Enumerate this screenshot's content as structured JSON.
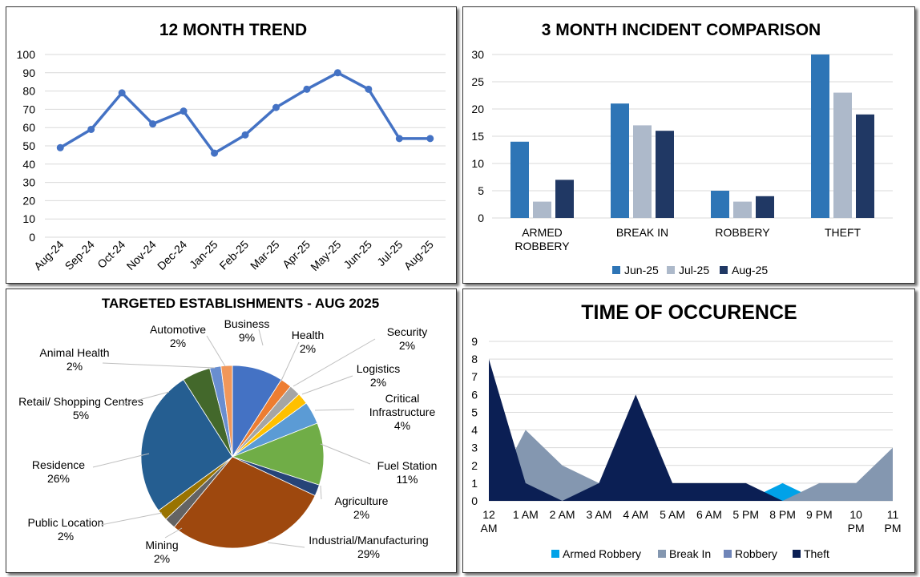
{
  "chart_data": [
    {
      "type": "line",
      "title": "12 MONTH TREND",
      "categories": [
        "Aug-24",
        "Sep-24",
        "Oct-24",
        "Nov-24",
        "Dec-24",
        "Jan-25",
        "Feb-25",
        "Mar-25",
        "Apr-25",
        "May-25",
        "Jun-25",
        "Jul-25",
        "Aug-25"
      ],
      "values": [
        49,
        59,
        79,
        62,
        69,
        46,
        56,
        71,
        81,
        90,
        81,
        54,
        54
      ],
      "ylim": [
        0,
        100
      ],
      "yticks": [
        "0",
        "10",
        "20",
        "30",
        "40",
        "50",
        "60",
        "70",
        "80",
        "90",
        "100"
      ],
      "color": "#4472C4"
    },
    {
      "type": "bar",
      "title": "3 MONTH INCIDENT COMPARISON",
      "categories": [
        [
          "ARMED",
          "ROBBERY"
        ],
        [
          "BREAK IN"
        ],
        [
          "ROBBERY"
        ],
        [
          "THEFT"
        ]
      ],
      "series": [
        {
          "name": "Jun-25",
          "values": [
            14,
            21,
            5,
            30
          ],
          "color": "#2E75B6"
        },
        {
          "name": "Jul-25",
          "values": [
            3,
            17,
            3,
            23
          ],
          "color": "#ADB9CA"
        },
        {
          "name": "Aug-25",
          "values": [
            7,
            16,
            4,
            19
          ],
          "color": "#203864"
        }
      ],
      "ylim": [
        0,
        30
      ],
      "yticks": [
        "0",
        "5",
        "10",
        "15",
        "20",
        "25",
        "30"
      ]
    },
    {
      "type": "pie",
      "title": "TARGETED ESTABLISHMENTS - AUG 2025",
      "slices": [
        {
          "label": "Business",
          "pct": "9%",
          "value": 9,
          "color": "#4472C4"
        },
        {
          "label": "Health",
          "pct": "2%",
          "value": 2,
          "color": "#ED7D31"
        },
        {
          "label": "Security",
          "pct": "2%",
          "value": 2,
          "color": "#A5A5A5"
        },
        {
          "label": "Logistics",
          "pct": "2%",
          "value": 2,
          "color": "#FFC000"
        },
        {
          "label": "Critical Infrastructure",
          "pct": "4%",
          "value": 4,
          "color": "#5B9BD5"
        },
        {
          "label": "Fuel Station",
          "pct": "11%",
          "value": 11,
          "color": "#70AD47"
        },
        {
          "label": "Agriculture",
          "pct": "2%",
          "value": 2,
          "color": "#264478"
        },
        {
          "label": "Industrial/Manufacturing",
          "pct": "29%",
          "value": 29,
          "color": "#9E480E"
        },
        {
          "label": "Mining",
          "pct": "2%",
          "value": 2,
          "color": "#636363"
        },
        {
          "label": "Public Location",
          "pct": "2%",
          "value": 2,
          "color": "#997300"
        },
        {
          "label": "Residence",
          "pct": "26%",
          "value": 26,
          "color": "#255E91"
        },
        {
          "label": "Retail/ Shopping Centres",
          "pct": "5%",
          "value": 5,
          "color": "#43682B"
        },
        {
          "label": "Animal Health",
          "pct": "2%",
          "value": 2,
          "color": "#698ED0"
        },
        {
          "label": "Automotive",
          "pct": "2%",
          "value": 2,
          "color": "#F1975A"
        }
      ]
    },
    {
      "type": "area",
      "title": "TIME OF OCCURENCE",
      "categories": [
        [
          "12",
          "AM"
        ],
        [
          "1 AM"
        ],
        [
          "2 AM"
        ],
        [
          "3 AM"
        ],
        [
          "4 AM"
        ],
        [
          "5 AM"
        ],
        [
          "6 AM"
        ],
        [
          "5 PM"
        ],
        [
          "8 PM"
        ],
        [
          "9 PM"
        ],
        [
          "10",
          "PM"
        ],
        [
          "11",
          "PM"
        ]
      ],
      "series": [
        {
          "name": "Armed Robbery",
          "values": [
            0,
            0,
            0,
            0,
            0,
            0,
            0,
            0,
            1,
            0,
            0,
            0
          ],
          "color": "#00A2E8"
        },
        {
          "name": "Break In",
          "values": [
            0,
            4,
            2,
            1,
            0,
            0,
            0,
            0,
            0,
            1,
            1,
            3
          ],
          "color": "#8497B0"
        },
        {
          "name": "Robbery",
          "values": [
            0,
            0,
            0,
            0,
            0,
            0,
            0,
            0,
            0,
            0,
            0,
            0
          ],
          "color": "#6F85B8"
        },
        {
          "name": "Theft",
          "values": [
            8,
            1,
            0,
            1,
            6,
            1,
            1,
            1,
            0,
            0,
            0,
            0
          ],
          "color": "#0B1F54"
        }
      ],
      "ylim": [
        0,
        9
      ],
      "yticks": [
        "0",
        "1",
        "2",
        "3",
        "4",
        "5",
        "6",
        "7",
        "8",
        "9"
      ]
    }
  ]
}
